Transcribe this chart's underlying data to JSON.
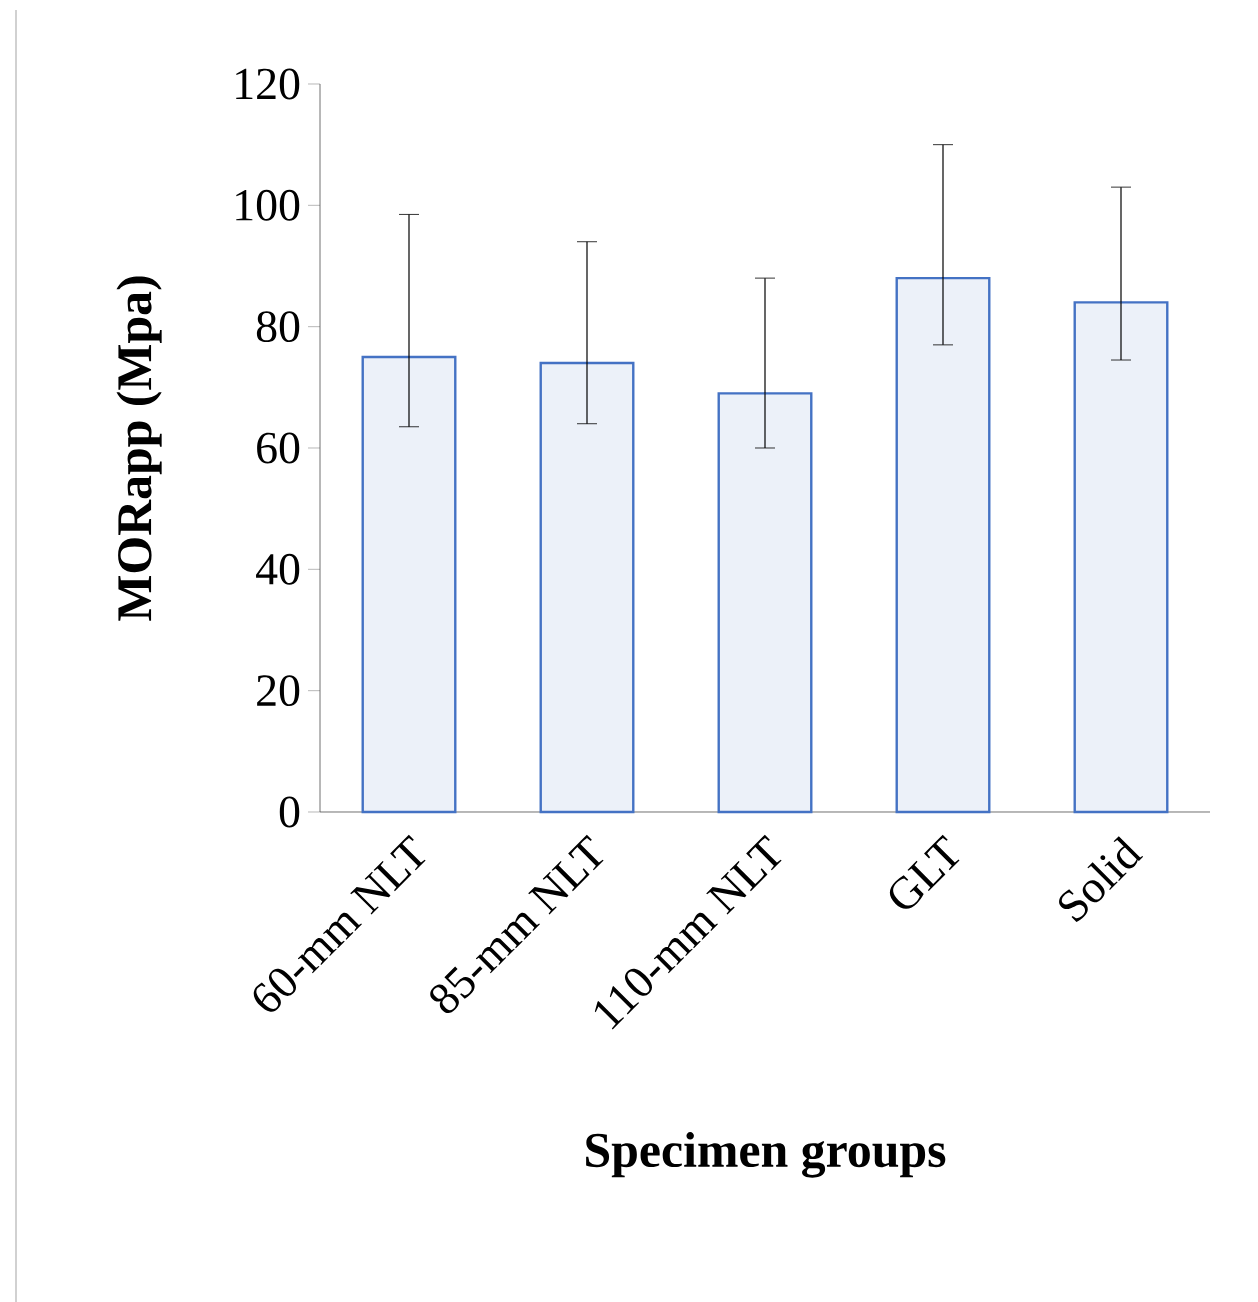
{
  "chart_data": {
    "type": "bar",
    "xlabel": "Specimen groups",
    "ylabel": "MORapp (Mpa)",
    "categories": [
      "60-mm NLT",
      "85-mm NLT",
      "110-mm NLT",
      "GLT",
      "Solid"
    ],
    "values": [
      75,
      74,
      69,
      88,
      84
    ],
    "errors": [
      [
        63.5,
        98.5
      ],
      [
        64,
        94
      ],
      [
        60,
        88
      ],
      [
        77,
        110
      ],
      [
        74.5,
        103
      ]
    ],
    "color": "#4472c4",
    "ylim": [
      0,
      120
    ],
    "yticks": [
      0,
      20,
      40,
      60,
      80,
      100,
      120
    ]
  }
}
